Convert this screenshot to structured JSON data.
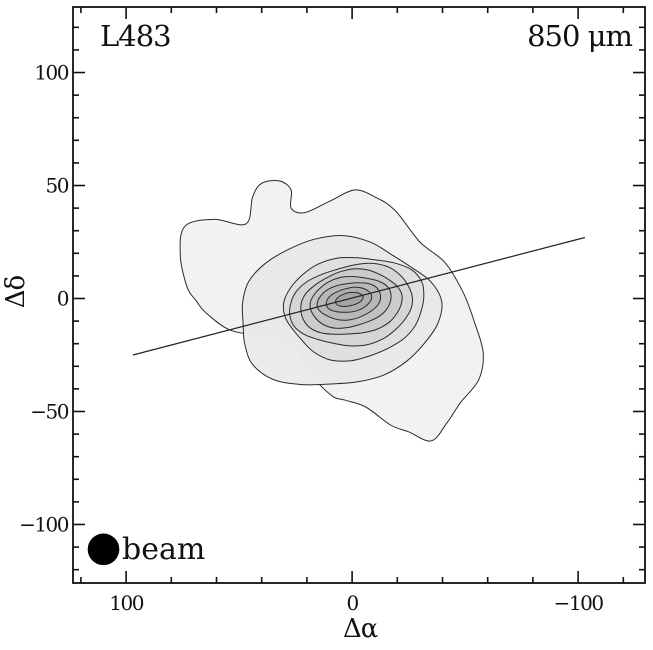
{
  "figure": {
    "title_left": "L483",
    "title_right": "850 μm",
    "xlabel": "Δα",
    "ylabel": "Δδ",
    "beam_label": "beam"
  },
  "chart_data": {
    "type": "contour",
    "title": "L483",
    "annotation_right": "850 μm",
    "xlabel": "Δα",
    "ylabel": "Δδ",
    "xlim": [
      123.5,
      -129.6
    ],
    "ylim": [
      -125.9,
      129.0
    ],
    "x_major_ticks": {
      "values": [
        100,
        0,
        -100
      ],
      "labels": [
        "100",
        "0",
        "−100"
      ]
    },
    "y_major_ticks": {
      "values": [
        100,
        50,
        0,
        -50,
        -100
      ],
      "labels": [
        "100",
        "50",
        "0",
        "−50",
        "−100"
      ]
    },
    "x_minor_step": 20,
    "y_minor_step": 10,
    "grid": false,
    "contour_center": {
      "x": 0,
      "y": 0
    },
    "contour_levels": [
      {
        "name": "level-1",
        "fill": "#f4f4f4",
        "points": [
          [
            76,
            19
          ],
          [
            74,
            32
          ],
          [
            61,
            35
          ],
          [
            47,
            33
          ],
          [
            44,
            45
          ],
          [
            40,
            51
          ],
          [
            32,
            52
          ],
          [
            27,
            48
          ],
          [
            27,
            40
          ],
          [
            21,
            38
          ],
          [
            10,
            43
          ],
          [
            -1,
            48
          ],
          [
            -10,
            45
          ],
          [
            -19,
            39
          ],
          [
            -30,
            25
          ],
          [
            -41,
            16
          ],
          [
            -49,
            3
          ],
          [
            -54,
            -10
          ],
          [
            -58,
            -24
          ],
          [
            -56,
            -36
          ],
          [
            -48,
            -46
          ],
          [
            -42,
            -55
          ],
          [
            -35,
            -63
          ],
          [
            -25,
            -59
          ],
          [
            -17,
            -56
          ],
          [
            -6,
            -48
          ],
          [
            3,
            -45
          ],
          [
            9,
            -43
          ],
          [
            19,
            -33
          ],
          [
            26,
            -22
          ],
          [
            39,
            -17
          ],
          [
            54,
            -14
          ],
          [
            65,
            -6
          ],
          [
            69,
            -1
          ],
          [
            73,
            5
          ]
        ]
      },
      {
        "name": "level-2",
        "fill": "#ebebeb",
        "ellipse": {
          "cx": 6.9,
          "cy": -6.4,
          "a": 44.2,
          "b": 32.7,
          "tilt": -6,
          "wobble": [
            0.045,
            0.03
          ],
          "phase": [
            0.8,
            2.0
          ]
        }
      },
      {
        "name": "level-3",
        "fill": "#e1e1e1",
        "ellipse": {
          "cx": -0.9,
          "cy": -3.8,
          "a": 31.0,
          "b": 22.6,
          "tilt": -8,
          "wobble": [
            0.04,
            0.025
          ],
          "phase": [
            2.5,
            4.1
          ]
        }
      },
      {
        "name": "level-4",
        "fill": "#d7d7d7",
        "ellipse": {
          "cx": 0.0,
          "cy": -2.9,
          "a": 27.4,
          "b": 17.7,
          "tilt": -9,
          "wobble": [
            0.035,
            0.02
          ],
          "phase": [
            4.2,
            0.6
          ]
        }
      },
      {
        "name": "level-5",
        "fill": "#cdcdcd",
        "ellipse": {
          "cx": 0.4,
          "cy": -2.0,
          "a": 22.6,
          "b": 14.2,
          "tilt": -9,
          "wobble": [
            0.03,
            0.02
          ],
          "phase": [
            5.9,
            2.2
          ]
        }
      },
      {
        "name": "level-6",
        "fill": "#c3c3c3",
        "ellipse": {
          "cx": 0.9,
          "cy": -1.5,
          "a": 18.1,
          "b": 11.1,
          "tilt": -10,
          "wobble": [
            0.028,
            0.018
          ],
          "phase": [
            1.3,
            3.8
          ]
        }
      },
      {
        "name": "level-7",
        "fill": "#b9b9b9",
        "ellipse": {
          "cx": 1.3,
          "cy": -1.1,
          "a": 14.2,
          "b": 8.0,
          "tilt": -10,
          "wobble": [
            0.025,
            0.015
          ],
          "phase": [
            3.0,
            5.4
          ]
        }
      },
      {
        "name": "level-8",
        "fill": "#b0b0b0",
        "ellipse": {
          "cx": 1.3,
          "cy": -0.7,
          "a": 10.2,
          "b": 5.3,
          "tilt": -11,
          "wobble": [
            0.02,
            0.012
          ],
          "phase": [
            4.7,
            1.0
          ]
        }
      },
      {
        "name": "level-9",
        "fill": "#a6a6a6",
        "ellipse": {
          "cx": 1.3,
          "cy": -0.4,
          "a": 6.2,
          "b": 2.9,
          "tilt": -12,
          "wobble": [
            0.02,
            0.01
          ],
          "phase": [
            0.4,
            2.6
          ]
        }
      }
    ],
    "outflow_line": {
      "x1": 97,
      "y1": -25,
      "x2": -103,
      "y2": 27
    },
    "beam": {
      "x": 110,
      "y": -111,
      "radius": 7,
      "label": "beam",
      "color": "#000000"
    },
    "colors": {
      "frame": "#111111",
      "contour_stroke": "#2b2b2b",
      "line": "#222222",
      "text": "#111111",
      "background": "#ffffff"
    }
  }
}
